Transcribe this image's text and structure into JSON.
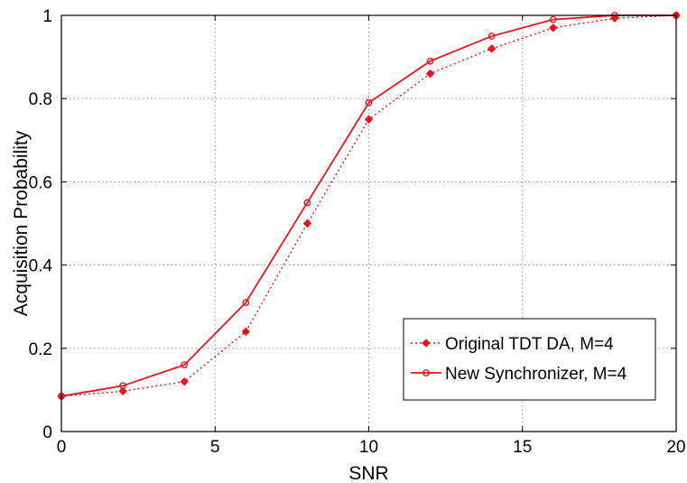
{
  "chart_data": {
    "type": "line",
    "title": "",
    "xlabel": "SNR",
    "ylabel": "Acquisition Probability",
    "xlim": [
      0,
      20
    ],
    "ylim": [
      0,
      1
    ],
    "xticks": [
      0,
      5,
      10,
      15,
      20
    ],
    "yticks": [
      0,
      0.2,
      0.4,
      0.6,
      0.8,
      1
    ],
    "x_tick_labels": [
      "0",
      "5",
      "10",
      "15",
      "20"
    ],
    "y_tick_labels": [
      "0",
      "0.2",
      "0.4",
      "0.6",
      "0.8",
      "1"
    ],
    "grid": true,
    "grid_style": "dotted",
    "legend_position": "bottom-right",
    "x": [
      0,
      2,
      4,
      6,
      8,
      10,
      12,
      14,
      16,
      18,
      20
    ],
    "series": [
      {
        "name": "Original TDT DA, M=4",
        "color": "#e8141c",
        "line": "dotted",
        "marker": "diamond-filled",
        "values": [
          0.085,
          0.097,
          0.12,
          0.24,
          0.5,
          0.75,
          0.86,
          0.92,
          0.97,
          0.993,
          1.0
        ]
      },
      {
        "name": "New Synchronizer, M=4",
        "color": "#e8141c",
        "line": "solid",
        "marker": "circle-open",
        "values": [
          0.085,
          0.11,
          0.16,
          0.31,
          0.55,
          0.79,
          0.89,
          0.95,
          0.99,
          1.0,
          1.0
        ]
      }
    ]
  }
}
